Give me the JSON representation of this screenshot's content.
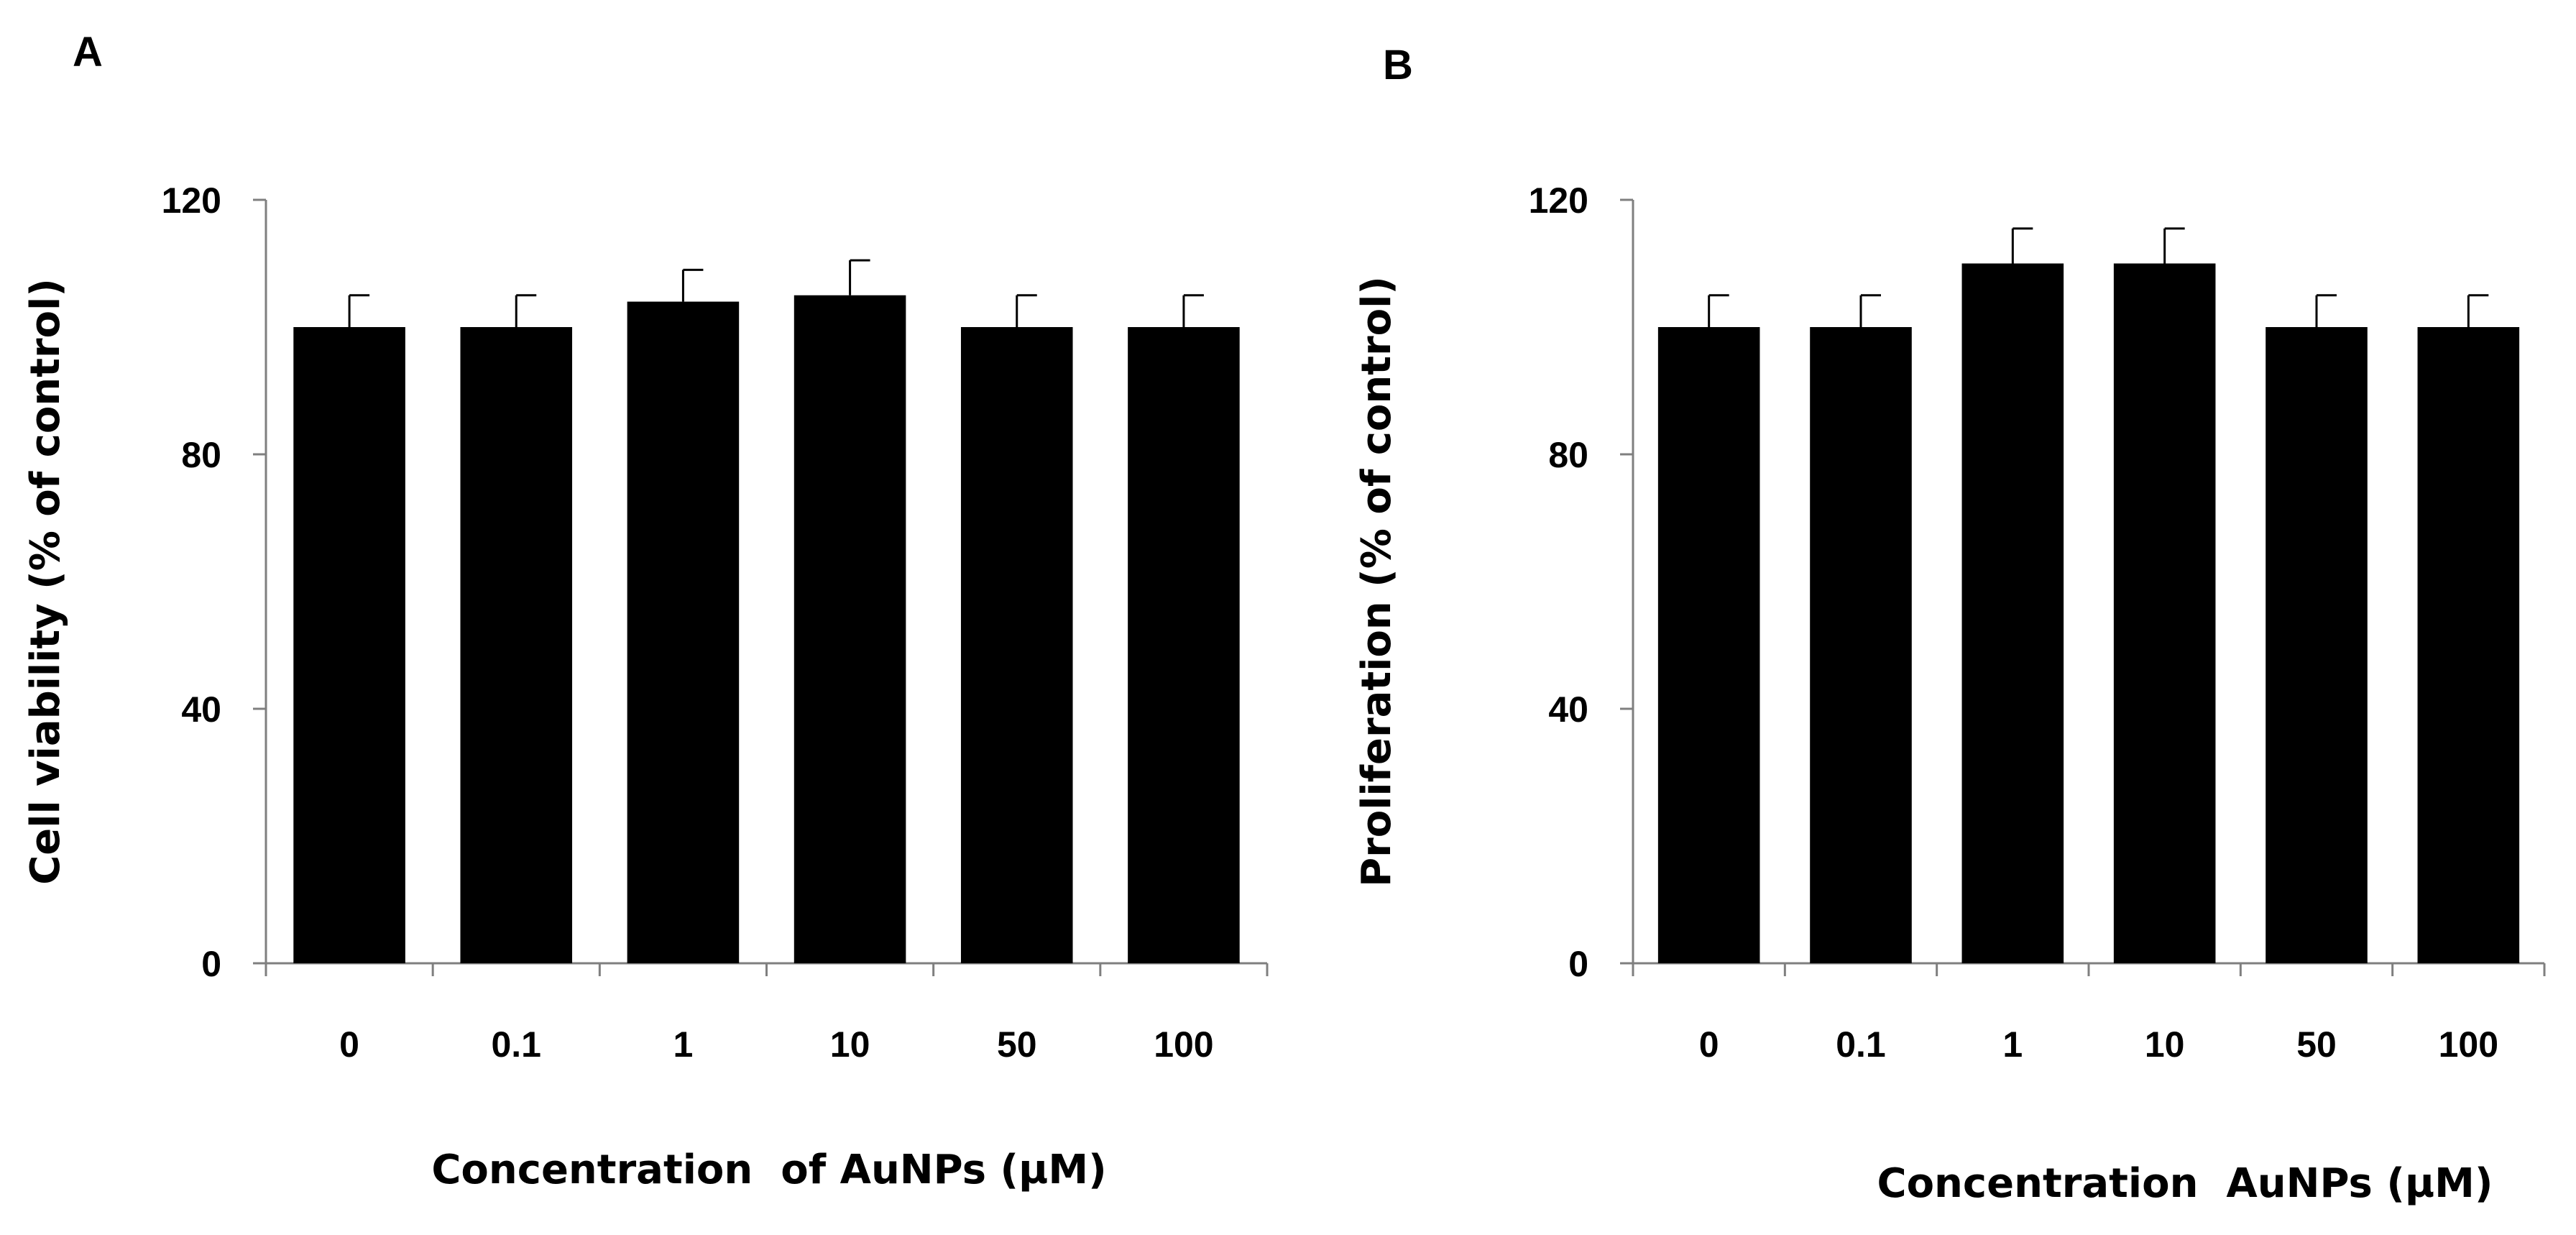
{
  "chart_data": [
    {
      "panel": "A",
      "type": "bar",
      "title": "",
      "ylabel": "Cell viability (% of control)",
      "xlabel": "Concentration  of AuNPs (µM)",
      "categories": [
        "0",
        "0.1",
        "1",
        "10",
        "50",
        "100"
      ],
      "values": [
        100,
        100,
        104,
        105,
        100,
        100
      ],
      "errors": [
        5,
        5,
        5,
        5.5,
        5,
        5
      ],
      "ylim": [
        0,
        120
      ],
      "yticks": [
        "0",
        "40",
        "80",
        "120"
      ],
      "grid": false,
      "bar_color": "#000000"
    },
    {
      "panel": "B",
      "type": "bar",
      "title": "",
      "ylabel": "Proliferation (% of control)",
      "xlabel": "Concentration  AuNPs (µM)",
      "categories": [
        "0",
        "0.1",
        "1",
        "10",
        "50",
        "100"
      ],
      "values": [
        100,
        100,
        110,
        110,
        100,
        100
      ],
      "errors": [
        5,
        5,
        5.5,
        5.5,
        5,
        5
      ],
      "ylim": [
        0,
        120
      ],
      "yticks": [
        "0",
        "40",
        "80",
        "120"
      ],
      "grid": false,
      "bar_color": "#000000"
    }
  ]
}
